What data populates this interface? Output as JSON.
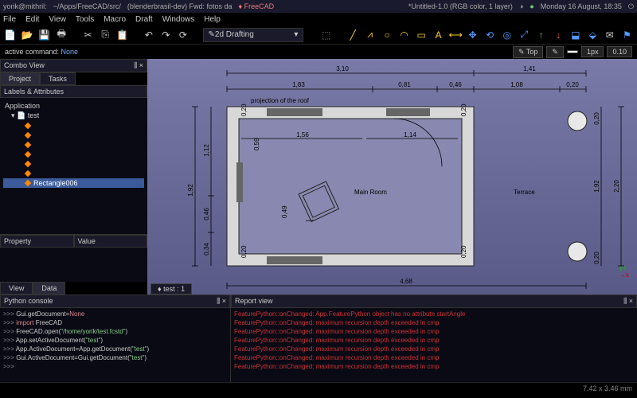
{
  "titlebar": {
    "user": "yorik@mithril:",
    "path": "~/Apps/FreeCAD/src/",
    "tab2": "(blenderbrasil-dev) Fwd: fotos da",
    "app": "FreeCAD",
    "doc": "*Untitled-1.0 (RGB color, 1 layer)",
    "datetime": "Monday 16 August, 18:35"
  },
  "menu": [
    "File",
    "Edit",
    "View",
    "Tools",
    "Macro",
    "Draft",
    "Windows",
    "Help"
  ],
  "toolbar": {
    "mode": "2d Drafting"
  },
  "cmdbar": {
    "label": "active command:",
    "value": "None",
    "topbtn": "Top",
    "px": "1px",
    "scale": "0.10"
  },
  "combo": {
    "title": "Combo View",
    "tabs": [
      "Project",
      "Tasks"
    ],
    "labels_header": "Labels & Attributes",
    "app": "Application",
    "root": "test",
    "items": [
      "",
      "",
      "",
      "",
      "",
      ""
    ],
    "selected": "Rectangle006",
    "prop_headers": [
      "Property",
      "Value"
    ],
    "bottom_tabs": [
      "View",
      "Data"
    ]
  },
  "viewport": {
    "proj_label": "projection of the roof",
    "main_room": "Main Room",
    "terrace": "Terrace",
    "tab": "test : 1",
    "dims": {
      "top_total": "3,10",
      "top_1": "1,83",
      "top_2": "0,81",
      "top_3": "0,46",
      "top_right": "1,41",
      "tr_1": "1,08",
      "tr_2": "0,20",
      "left_total": "1,92",
      "left_1": "1,12",
      "left_2": "0,46",
      "left_3": "0,34",
      "right_total": "2,20",
      "right_1": "1,92",
      "r_small1": "0,20",
      "r_small2": "0,20",
      "bottom_total": "4,68",
      "inner_1": "1,56",
      "inner_2": "1,14",
      "t020a": "0,20",
      "t020b": "0,20",
      "t020c": "0,20",
      "t020d": "0,20",
      "t020e": "0,20",
      "t020f": "0,20",
      "v059": "0,59",
      "v049": "0,49"
    }
  },
  "console": {
    "title": "Python console",
    "lines": [
      {
        "p": ">>> ",
        "t": "Gui.getDocument=",
        "v": "None",
        "cls": "kw"
      },
      {
        "p": ">>> ",
        "k": "import",
        "t": " FreeCAD"
      },
      {
        "p": ">>> ",
        "t": "FreeCAD.open(",
        "s": "\"/home/yorik/test.fcstd\"",
        "t2": ")"
      },
      {
        "p": ">>> ",
        "t": "App.setActiveDocument(",
        "s": "\"test\"",
        "t2": ")"
      },
      {
        "p": ">>> ",
        "t": "App.ActiveDocument=App.getDocument(",
        "s": "\"test\"",
        "t2": ")"
      },
      {
        "p": ">>> ",
        "t": "Gui.ActiveDocument=Gui.getDocument(",
        "s": "\"test\"",
        "t2": ")"
      },
      {
        "p": ">>> ",
        "t": ""
      }
    ]
  },
  "report": {
    "title": "Report view",
    "err_line": "FeaturePython::onChanged: maximum recursion depth exceeded in cmp",
    "first_line": "FeaturePython::onChanged: App.FeaturePython object has no attribute startAngle"
  },
  "status": {
    "coords": "7.42 x 3.46 mm"
  },
  "colors": {
    "tool_yellow": "#ffcc33",
    "tool_blue": "#5599ff",
    "tool_green": "#66cc66",
    "tool_red": "#ff6666"
  }
}
